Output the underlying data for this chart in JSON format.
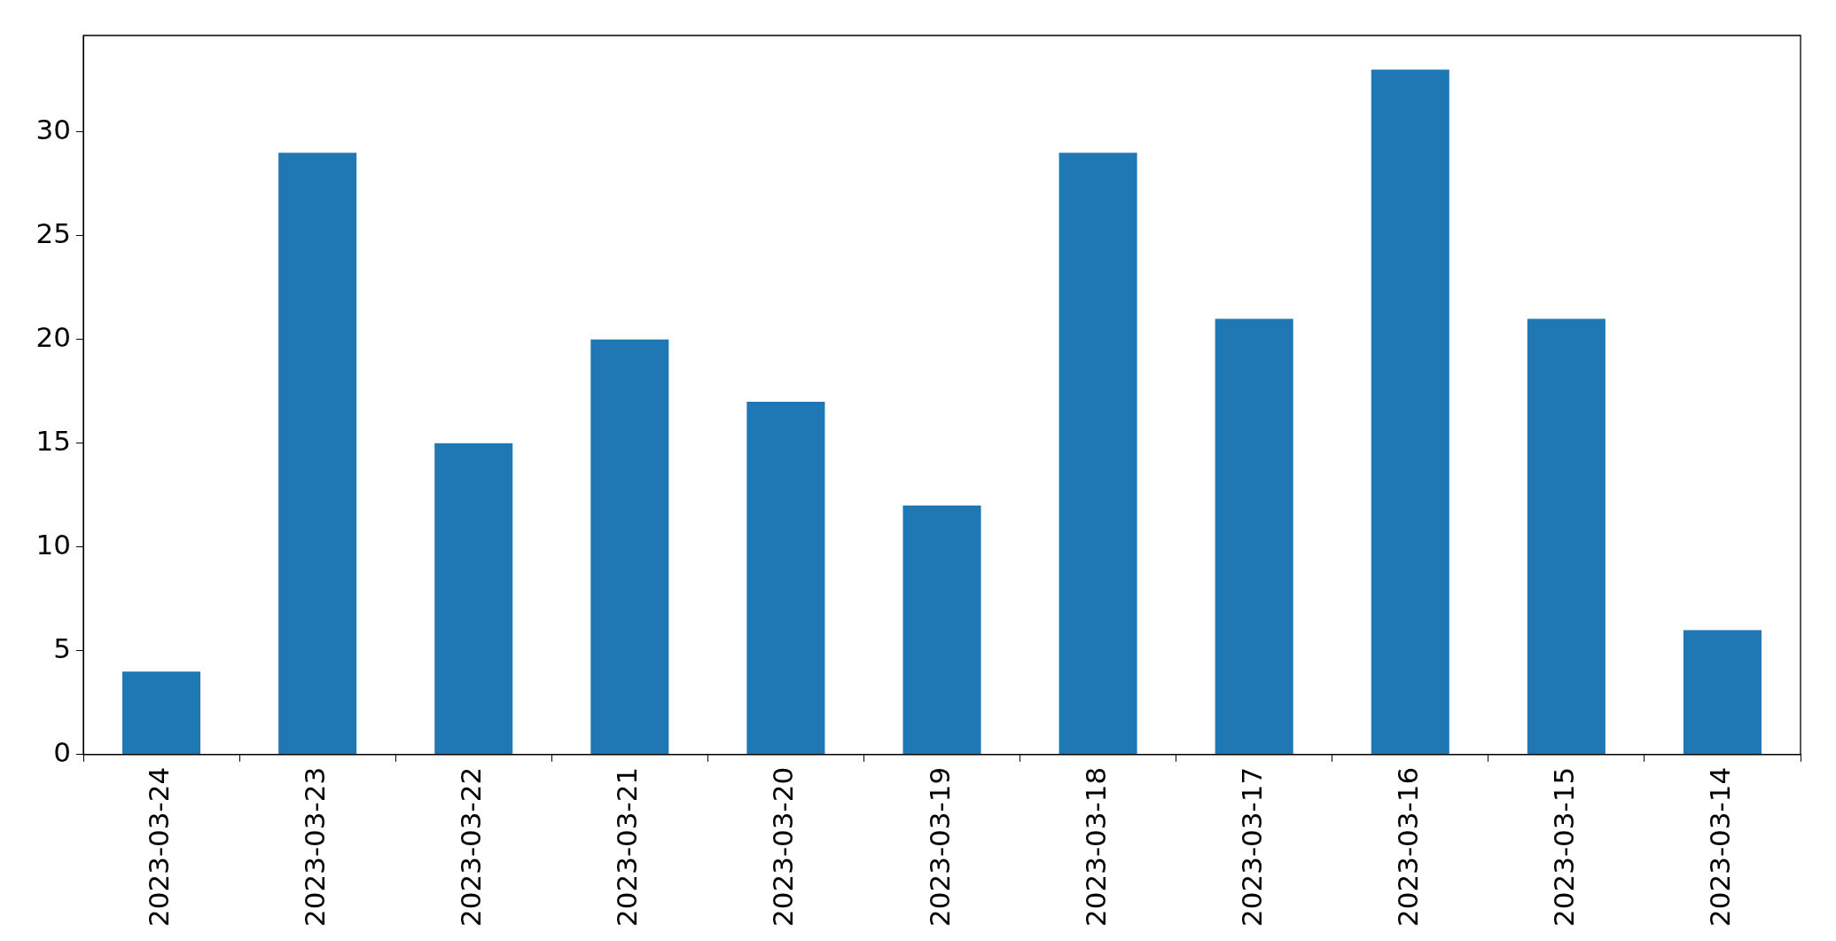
{
  "chart_data": {
    "type": "bar",
    "categories": [
      "2023-03-24",
      "2023-03-23",
      "2023-03-22",
      "2023-03-21",
      "2023-03-20",
      "2023-03-19",
      "2023-03-18",
      "2023-03-17",
      "2023-03-16",
      "2023-03-15",
      "2023-03-14"
    ],
    "values": [
      4,
      29,
      15,
      20,
      17,
      12,
      29,
      21,
      33,
      21,
      6
    ],
    "color": "#1f77b4",
    "ylim": [
      0,
      34.65
    ],
    "yticks": [
      0,
      5,
      10,
      15,
      20,
      25,
      30
    ],
    "grid": false,
    "legend": false
  }
}
